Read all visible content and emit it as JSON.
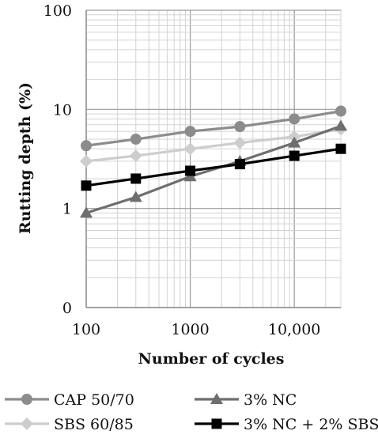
{
  "chart_data": {
    "type": "line",
    "xlabel": "Number of cycles",
    "ylabel": "Rutting depth (%)",
    "x": [
      100,
      300,
      1000,
      3000,
      10000,
      28000
    ],
    "x_scale": "log",
    "y_scale": "log",
    "xlim": [
      100,
      28000
    ],
    "ylim": [
      0.1,
      100
    ],
    "x_ticks": [
      100,
      1000,
      10000
    ],
    "x_tick_labels": [
      "100",
      "1000",
      "10,000"
    ],
    "y_ticks": [
      0.1,
      1,
      10,
      100
    ],
    "y_tick_labels": [
      "0",
      "1",
      "10",
      "100"
    ],
    "grid": true,
    "legend_position": "bottom",
    "series": [
      {
        "name": "CAP 50/70",
        "marker": "circle",
        "color": "#8c8c8c",
        "values": [
          4.3,
          5.0,
          6.0,
          6.7,
          8.0,
          9.6
        ]
      },
      {
        "name": "3% NC",
        "marker": "triangle",
        "color": "#6e6e6e",
        "values": [
          0.9,
          1.3,
          2.1,
          3.0,
          4.6,
          6.8
        ]
      },
      {
        "name": "SBS 60/85",
        "marker": "diamond",
        "color": "#cdcdcd",
        "values": [
          3.0,
          3.4,
          4.0,
          4.6,
          5.3,
          6.3
        ]
      },
      {
        "name": "3% NC + 2% SBS",
        "marker": "square",
        "color": "#000000",
        "values": [
          1.7,
          2.0,
          2.4,
          2.8,
          3.4,
          4.0
        ]
      }
    ]
  }
}
